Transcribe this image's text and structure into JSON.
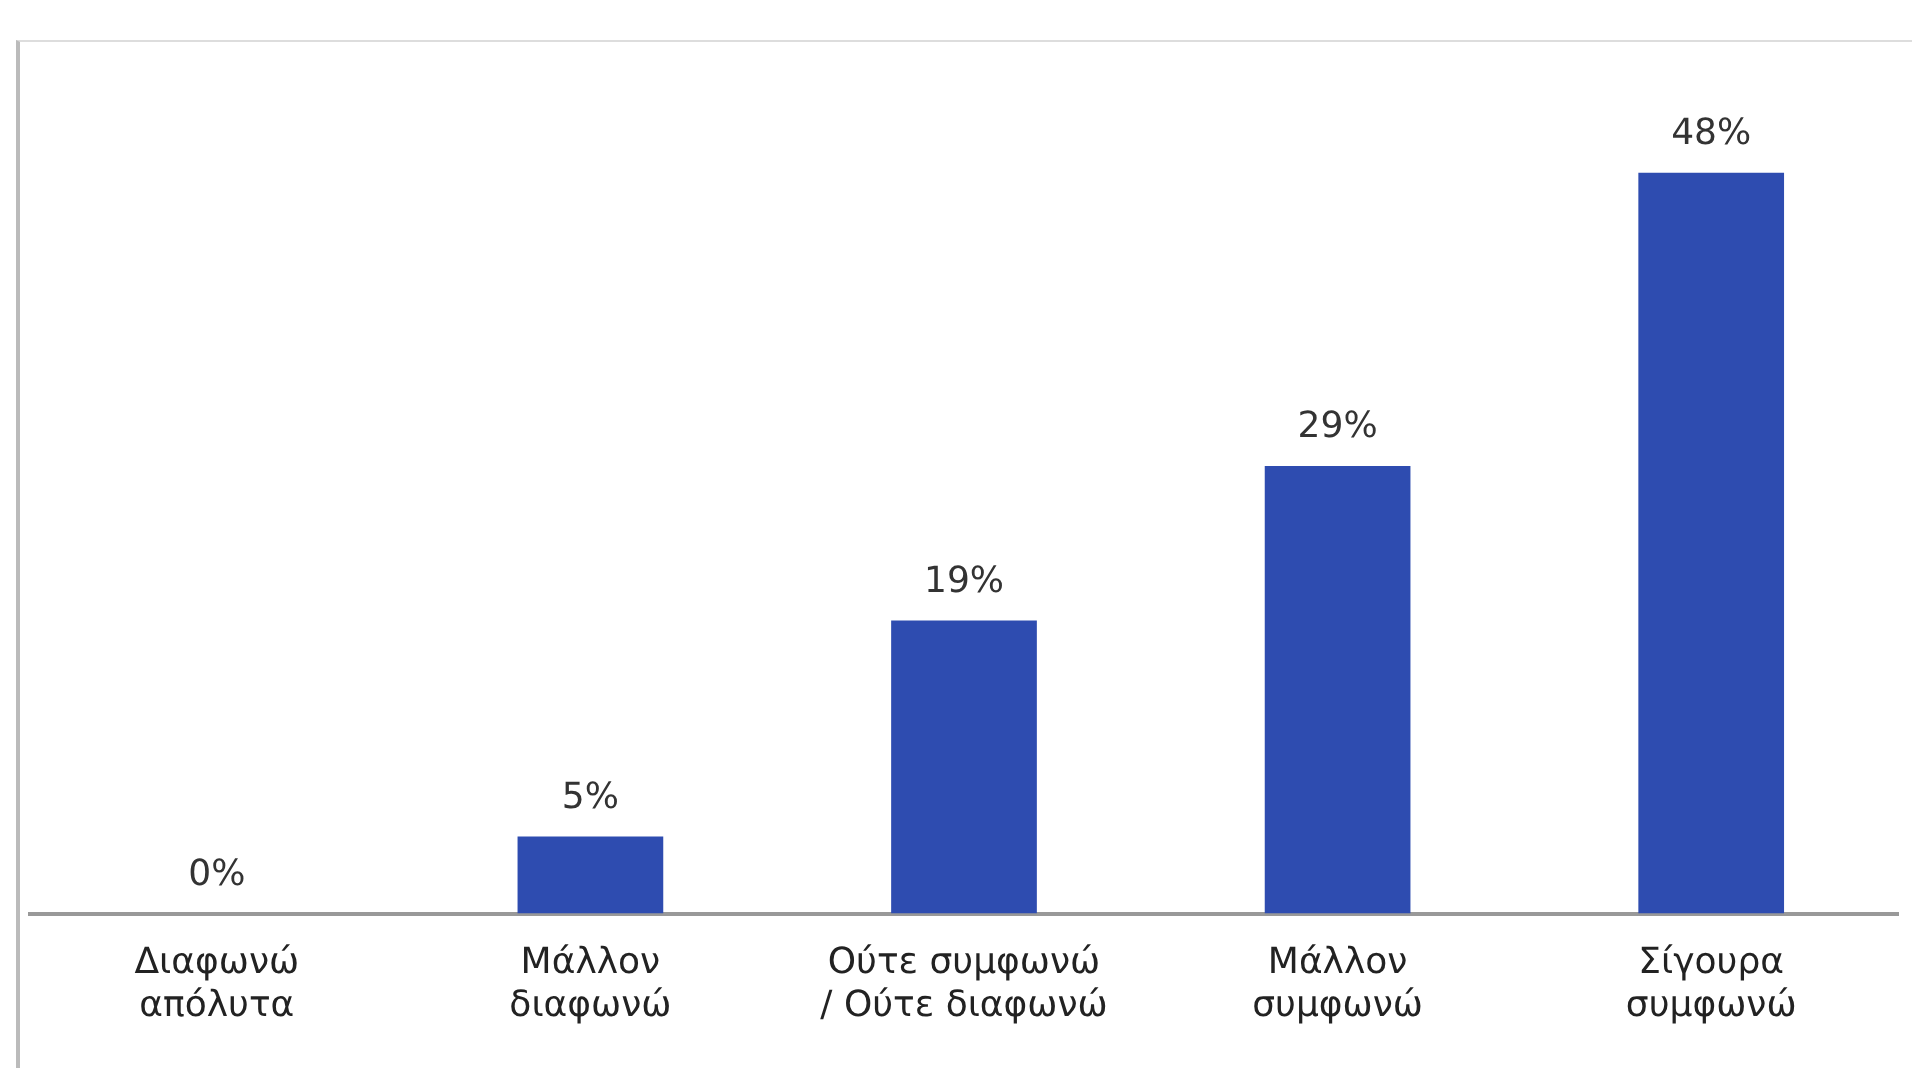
{
  "chart_data": {
    "type": "bar",
    "categories": [
      "Διαφωνώ απόλυτα",
      "Μάλλον διαφωνώ",
      "Ούτε συμφωνώ / Ούτε διαφωνώ",
      "Μάλλον συμφωνώ",
      "Σίγουρα συμφωνώ"
    ],
    "values": [
      0,
      5,
      19,
      29,
      48
    ],
    "color": "#2e4cb0",
    "value_labels": [
      "0%",
      "5%",
      "19%",
      "29%",
      "48%"
    ],
    "grid": false,
    "legend": false
  }
}
